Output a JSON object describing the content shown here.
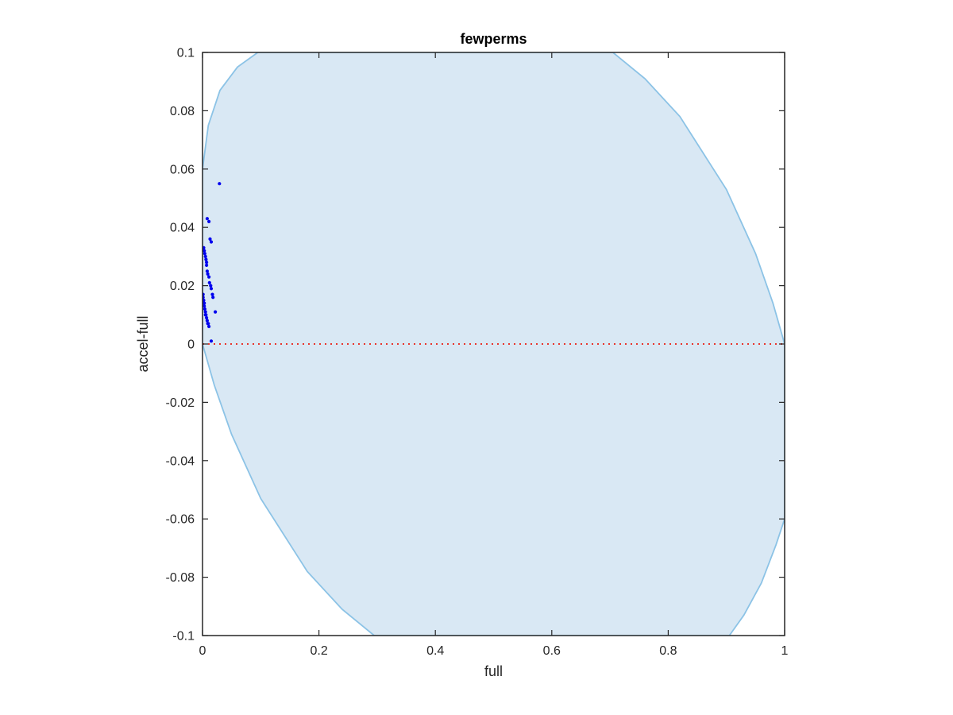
{
  "chart_data": {
    "type": "scatter",
    "title": "fewperms",
    "xlabel": "full",
    "ylabel": "accel-full",
    "xlim": [
      0,
      1
    ],
    "ylim": [
      -0.1,
      0.1
    ],
    "xticks": [
      0,
      0.2,
      0.4,
      0.6,
      0.8,
      1
    ],
    "xtick_labels": [
      "0",
      "0.2",
      "0.4",
      "0.6",
      "0.8",
      "1"
    ],
    "yticks": [
      0.1,
      0.08,
      0.06,
      0.04,
      0.02,
      0,
      -0.02,
      -0.04,
      -0.06,
      -0.08,
      -0.1
    ],
    "ytick_labels": [
      "0.1",
      "0.08",
      "0.06",
      "0.04",
      "0.02",
      "0",
      "-0.02",
      "-0.04",
      "-0.06",
      "-0.08",
      "-0.1"
    ],
    "grid": false,
    "legend": "none",
    "region": {
      "fill_color": "#d9e8f4",
      "edge_color": "#8cc3e6",
      "description_free": true,
      "boundary": [
        {
          "x": 0,
          "y": 0.06
        },
        {
          "x": 0.01,
          "y": 0.075
        },
        {
          "x": 0.03,
          "y": 0.087
        },
        {
          "x": 0.06,
          "y": 0.095
        },
        {
          "x": 0.095,
          "y": 0.1
        },
        {
          "x": 0.705,
          "y": 0.1
        },
        {
          "x": 0.76,
          "y": 0.091
        },
        {
          "x": 0.82,
          "y": 0.078
        },
        {
          "x": 0.9,
          "y": 0.053
        },
        {
          "x": 0.95,
          "y": 0.031
        },
        {
          "x": 0.98,
          "y": 0.014
        },
        {
          "x": 1,
          "y": 0
        },
        {
          "x": 1,
          "y": -0.06
        },
        {
          "x": 0.985,
          "y": -0.069
        },
        {
          "x": 0.96,
          "y": -0.082
        },
        {
          "x": 0.93,
          "y": -0.093
        },
        {
          "x": 0.905,
          "y": -0.1
        },
        {
          "x": 0.295,
          "y": -0.1
        },
        {
          "x": 0.24,
          "y": -0.091
        },
        {
          "x": 0.18,
          "y": -0.078
        },
        {
          "x": 0.1,
          "y": -0.053
        },
        {
          "x": 0.05,
          "y": -0.031
        },
        {
          "x": 0.02,
          "y": -0.014
        },
        {
          "x": 0,
          "y": 0
        }
      ]
    },
    "reference_line": {
      "y": 0,
      "x_range": [
        0,
        1
      ],
      "color": "#e8342c",
      "style": "dotted"
    },
    "series": [
      {
        "color": "#0000ee",
        "points": [
          {
            "x": 0.029,
            "y": 0.055
          },
          {
            "x": 0.008,
            "y": 0.043
          },
          {
            "x": 0.011,
            "y": 0.042
          },
          {
            "x": 0.013,
            "y": 0.036
          },
          {
            "x": 0.015,
            "y": 0.035
          },
          {
            "x": 0.002,
            "y": 0.033
          },
          {
            "x": 0.003,
            "y": 0.032
          },
          {
            "x": 0.004,
            "y": 0.031
          },
          {
            "x": 0.005,
            "y": 0.03
          },
          {
            "x": 0.006,
            "y": 0.029
          },
          {
            "x": 0.007,
            "y": 0.028
          },
          {
            "x": 0.007,
            "y": 0.027
          },
          {
            "x": 0.008,
            "y": 0.025
          },
          {
            "x": 0.009,
            "y": 0.024
          },
          {
            "x": 0.011,
            "y": 0.023
          },
          {
            "x": 0.012,
            "y": 0.021
          },
          {
            "x": 0.014,
            "y": 0.02
          },
          {
            "x": 0.015,
            "y": 0.019
          },
          {
            "x": 0.017,
            "y": 0.017
          },
          {
            "x": 0.018,
            "y": 0.016
          },
          {
            "x": 0.001,
            "y": 0.017
          },
          {
            "x": 0.001,
            "y": 0.016
          },
          {
            "x": 0.002,
            "y": 0.015
          },
          {
            "x": 0.002,
            "y": 0.014
          },
          {
            "x": 0.003,
            "y": 0.014
          },
          {
            "x": 0.003,
            "y": 0.013
          },
          {
            "x": 0.004,
            "y": 0.012
          },
          {
            "x": 0.005,
            "y": 0.011
          },
          {
            "x": 0.005,
            "y": 0.01
          },
          {
            "x": 0.006,
            "y": 0.01
          },
          {
            "x": 0.007,
            "y": 0.009
          },
          {
            "x": 0.008,
            "y": 0.008
          },
          {
            "x": 0.009,
            "y": 0.007
          },
          {
            "x": 0.01,
            "y": 0.007
          },
          {
            "x": 0.011,
            "y": 0.006
          },
          {
            "x": 0.022,
            "y": 0.011
          },
          {
            "x": 0.015,
            "y": 0.001
          }
        ]
      }
    ]
  }
}
